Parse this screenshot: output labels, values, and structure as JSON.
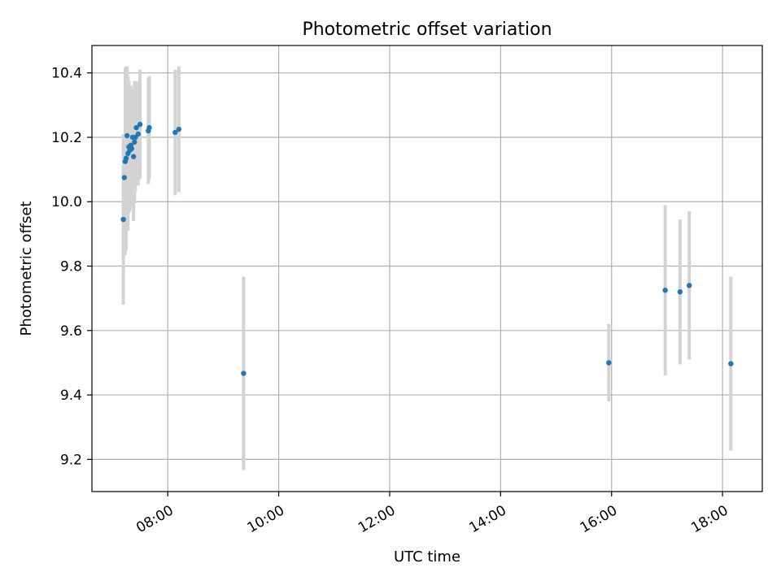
{
  "chart_data": {
    "type": "scatter",
    "title": "Photometric offset variation",
    "xlabel": "UTC time",
    "ylabel": "Photometric offset",
    "xlim": [
      "06:38",
      "18:43"
    ],
    "ylim": [
      9.1,
      10.485
    ],
    "xticks": [
      "08:00",
      "10:00",
      "12:00",
      "14:00",
      "16:00",
      "18:00"
    ],
    "yticks": [
      "9.2",
      "9.4",
      "9.6",
      "9.8",
      "10.0",
      "10.2",
      "10.4"
    ],
    "grid": true,
    "colors": {
      "point": "#1f77b4",
      "errorbar": "#d3d3d3",
      "grid": "#b0b0b0"
    },
    "series": [
      {
        "points": [
          {
            "x": "07:12",
            "y": 9.945,
            "err": 0.265
          },
          {
            "x": "07:13",
            "y": 10.075,
            "err": 0.135
          },
          {
            "x": "07:14",
            "y": 10.125,
            "err": 0.29
          },
          {
            "x": "07:15",
            "y": 10.135,
            "err": 0.285
          },
          {
            "x": "07:16",
            "y": 10.205,
            "err": 0.215
          },
          {
            "x": "07:17",
            "y": 10.15,
            "err": 0.24
          },
          {
            "x": "07:18",
            "y": 10.17,
            "err": 0.205
          },
          {
            "x": "07:19",
            "y": 10.16,
            "err": 0.19
          },
          {
            "x": "07:20",
            "y": 10.175,
            "err": 0.185
          },
          {
            "x": "07:21",
            "y": 10.165,
            "err": 0.185
          },
          {
            "x": "07:22",
            "y": 10.2,
            "err": 0.15
          },
          {
            "x": "07:23",
            "y": 10.14,
            "err": 0.2
          },
          {
            "x": "07:24",
            "y": 10.185,
            "err": 0.19
          },
          {
            "x": "07:25",
            "y": 10.2,
            "err": 0.17
          },
          {
            "x": "07:26",
            "y": 10.23,
            "err": 0.145
          },
          {
            "x": "07:28",
            "y": 10.21,
            "err": 0.16
          },
          {
            "x": "07:30",
            "y": 10.24,
            "err": 0.17
          },
          {
            "x": "07:39",
            "y": 10.22,
            "err": 0.165
          },
          {
            "x": "07:40",
            "y": 10.23,
            "err": 0.16
          },
          {
            "x": "08:08",
            "y": 10.215,
            "err": 0.195
          },
          {
            "x": "08:12",
            "y": 10.225,
            "err": 0.195
          },
          {
            "x": "09:22",
            "y": 9.467,
            "err": 0.3
          },
          {
            "x": "15:57",
            "y": 9.5,
            "err": 0.12
          },
          {
            "x": "16:58",
            "y": 9.725,
            "err": 0.265
          },
          {
            "x": "17:14",
            "y": 9.72,
            "err": 0.225
          },
          {
            "x": "17:24",
            "y": 9.74,
            "err": 0.23
          },
          {
            "x": "18:09",
            "y": 9.497,
            "err": 0.27
          }
        ]
      }
    ]
  }
}
